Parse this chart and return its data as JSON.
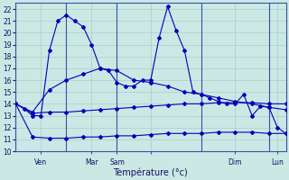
{
  "xlabel": "Température (°c)",
  "bg_color": "#cce8e4",
  "grid_color": "#aaccca",
  "line_color": "#0000bb",
  "vline_color": "#3355aa",
  "ylim": [
    10,
    22.5
  ],
  "yticks": [
    10,
    11,
    12,
    13,
    14,
    15,
    16,
    17,
    18,
    19,
    20,
    21,
    22
  ],
  "xlim": [
    0,
    32
  ],
  "vlines_x": [
    0,
    6,
    12,
    22,
    30
  ],
  "xtick_positions": [
    3,
    9,
    12,
    16,
    26,
    31
  ],
  "xtick_labels": [
    "Ven",
    "Mar",
    "Sam",
    "",
    "Dim",
    "Lun"
  ],
  "line1_x": [
    0,
    1,
    2,
    3,
    4,
    5,
    6,
    7,
    8,
    9,
    10,
    11,
    12,
    13,
    14,
    15,
    16,
    17,
    18,
    19,
    20,
    21,
    22,
    23,
    24,
    25,
    26,
    27,
    28,
    29,
    30,
    31,
    32
  ],
  "line1_y": [
    14.0,
    13.6,
    13.0,
    13.0,
    18.5,
    21.0,
    21.5,
    21.0,
    20.5,
    19.0,
    17.0,
    16.8,
    15.8,
    15.5,
    15.5,
    16.0,
    16.0,
    19.6,
    22.2,
    20.2,
    18.5,
    15.0,
    14.8,
    14.5,
    14.2,
    14.0,
    14.0,
    14.8,
    13.0,
    13.8,
    13.7,
    12.0,
    11.5
  ],
  "line2_x": [
    0,
    2,
    4,
    6,
    8,
    10,
    12,
    14,
    16,
    18,
    20,
    22,
    24,
    26,
    28,
    30,
    32
  ],
  "line2_y": [
    14.0,
    13.3,
    15.2,
    16.0,
    16.5,
    17.0,
    16.8,
    16.0,
    15.8,
    15.5,
    15.0,
    14.8,
    14.5,
    14.2,
    14.0,
    13.7,
    13.5
  ],
  "line3_x": [
    0,
    2,
    4,
    6,
    8,
    10,
    12,
    14,
    16,
    18,
    20,
    22,
    24,
    26,
    28,
    30,
    32
  ],
  "line3_y": [
    14.0,
    13.2,
    13.3,
    13.3,
    13.4,
    13.5,
    13.6,
    13.7,
    13.8,
    13.9,
    14.0,
    14.0,
    14.1,
    14.1,
    14.1,
    14.0,
    14.0
  ],
  "line4_x": [
    0,
    2,
    4,
    6,
    8,
    10,
    12,
    14,
    16,
    18,
    20,
    22,
    24,
    26,
    28,
    30,
    32
  ],
  "line4_y": [
    14.0,
    11.2,
    11.1,
    11.1,
    11.2,
    11.2,
    11.3,
    11.3,
    11.4,
    11.5,
    11.5,
    11.5,
    11.6,
    11.6,
    11.6,
    11.5,
    11.5
  ],
  "figsize": [
    3.2,
    2.0
  ],
  "dpi": 100
}
